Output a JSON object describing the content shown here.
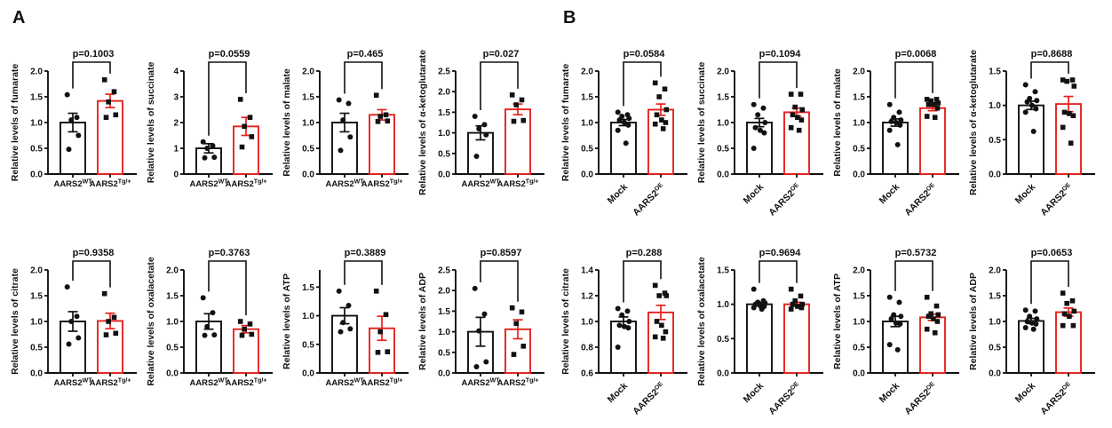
{
  "colors": {
    "bar1": "#111111",
    "bar2": "#e8211d",
    "axis": "#111111",
    "marker": "#111111"
  },
  "panels": [
    {
      "id": "A",
      "label": "A"
    },
    {
      "id": "B",
      "label": "B"
    }
  ],
  "chart_data": [
    {
      "panel": "A",
      "type": "bar",
      "ylabel": "Relative levels of fumarate",
      "p_label": "p=0.1003",
      "ylim": [
        0,
        2.0
      ],
      "yticks": [
        "0.0",
        "0.5",
        "1.0",
        "1.5",
        "2.0"
      ],
      "xlabel_rotated": false,
      "categories": [
        {
          "text": "AARS2",
          "sup": "WT"
        },
        {
          "text": "AARS2",
          "sup": "Tg/+"
        }
      ],
      "series": [
        {
          "name": "AARS2 WT",
          "mean": 1.0,
          "sem": 0.18,
          "marker": "circle",
          "color_key": "bar1",
          "points": [
            1.54,
            1.1,
            1.05,
            0.75,
            0.48
          ]
        },
        {
          "name": "AARS2 Tg/+",
          "mean": 1.42,
          "sem": 0.13,
          "marker": "square",
          "color_key": "bar2",
          "points": [
            1.83,
            1.6,
            1.4,
            1.15,
            1.1
          ]
        }
      ]
    },
    {
      "panel": "A",
      "type": "bar",
      "ylabel": "Relative levels of succinate",
      "p_label": "p=0.0559",
      "ylim": [
        0,
        4.0
      ],
      "yticks": [
        "0",
        "1",
        "2",
        "3",
        "4"
      ],
      "xlabel_rotated": false,
      "categories": [
        {
          "text": "AARS2",
          "sup": "WT"
        },
        {
          "text": "AARS2",
          "sup": "Tg/+"
        }
      ],
      "series": [
        {
          "name": "AARS2 WT",
          "mean": 1.0,
          "sem": 0.18,
          "marker": "circle",
          "color_key": "bar1",
          "points": [
            1.25,
            1.1,
            1.0,
            0.65,
            0.63
          ]
        },
        {
          "name": "AARS2 Tg/+",
          "mean": 1.85,
          "sem": 0.35,
          "marker": "square",
          "color_key": "bar2",
          "points": [
            2.9,
            2.2,
            1.85,
            1.45,
            1.05
          ]
        }
      ]
    },
    {
      "panel": "A",
      "type": "bar",
      "ylabel": "Relative levels of malate",
      "p_label": "p=0.465",
      "ylim": [
        0,
        2.0
      ],
      "yticks": [
        "0.0",
        "0.5",
        "1.0",
        "1.5",
        "2.0"
      ],
      "xlabel_rotated": false,
      "categories": [
        {
          "text": "AARS2",
          "sup": "WT"
        },
        {
          "text": "AARS2",
          "sup": "Tg/+"
        }
      ],
      "series": [
        {
          "name": "AARS2 WT",
          "mean": 1.0,
          "sem": 0.18,
          "marker": "circle",
          "color_key": "bar1",
          "points": [
            1.44,
            1.37,
            1.05,
            0.72,
            0.46
          ]
        },
        {
          "name": "AARS2 Tg/+",
          "mean": 1.15,
          "sem": 0.1,
          "marker": "square",
          "color_key": "bar2",
          "points": [
            1.53,
            1.15,
            1.12,
            1.03,
            1.02
          ]
        }
      ]
    },
    {
      "panel": "A",
      "type": "bar",
      "ylabel": "Relative levels of α-ketoglutarate",
      "p_label": "p=0.027",
      "ylim": [
        0,
        2.5
      ],
      "yticks": [
        "0.0",
        "0.5",
        "1.0",
        "1.5",
        "2.0",
        "2.5"
      ],
      "xlabel_rotated": false,
      "categories": [
        {
          "text": "AARS2",
          "sup": "WT"
        },
        {
          "text": "AARS2",
          "sup": "Tg/+"
        }
      ],
      "series": [
        {
          "name": "AARS2 WT",
          "mean": 1.0,
          "sem": 0.17,
          "marker": "circle",
          "color_key": "bar1",
          "points": [
            1.4,
            1.2,
            1.1,
            0.95,
            0.43
          ]
        },
        {
          "name": "AARS2 Tg/+",
          "mean": 1.57,
          "sem": 0.13,
          "marker": "square",
          "color_key": "bar2",
          "points": [
            1.92,
            1.8,
            1.68,
            1.3,
            1.28
          ]
        }
      ]
    },
    {
      "panel": "A",
      "type": "bar",
      "ylabel": "Relative levels of citrate",
      "p_label": "p=0.9358",
      "ylim": [
        0,
        2.0
      ],
      "yticks": [
        "0.0",
        "0.5",
        "1.0",
        "1.5",
        "2.0"
      ],
      "xlabel_rotated": false,
      "categories": [
        {
          "text": "AARS2",
          "sup": "WT"
        },
        {
          "text": "AARS2",
          "sup": "Tg/+"
        }
      ],
      "series": [
        {
          "name": "AARS2 WT",
          "mean": 1.0,
          "sem": 0.19,
          "marker": "circle",
          "color_key": "bar1",
          "points": [
            1.67,
            1.1,
            1.0,
            0.68,
            0.56
          ]
        },
        {
          "name": "AARS2 Tg/+",
          "mean": 1.01,
          "sem": 0.15,
          "marker": "square",
          "color_key": "bar2",
          "points": [
            1.54,
            1.08,
            1.0,
            0.77,
            0.74
          ]
        }
      ]
    },
    {
      "panel": "A",
      "type": "bar",
      "ylabel": "Relative levels of oxalacetate",
      "p_label": "p=0.3763",
      "ylim": [
        0,
        2.0
      ],
      "yticks": [
        "0.0",
        "0.5",
        "1.0",
        "1.5",
        "2.0"
      ],
      "xlabel_rotated": false,
      "categories": [
        {
          "text": "AARS2",
          "sup": "WT"
        },
        {
          "text": "AARS2",
          "sup": "Tg/+"
        }
      ],
      "series": [
        {
          "name": "AARS2 WT",
          "mean": 1.0,
          "sem": 0.15,
          "marker": "circle",
          "color_key": "bar1",
          "points": [
            1.46,
            1.17,
            0.9,
            0.74,
            0.73
          ]
        },
        {
          "name": "AARS2 Tg/+",
          "mean": 0.85,
          "sem": 0.07,
          "marker": "square",
          "color_key": "bar2",
          "points": [
            1.0,
            0.95,
            0.85,
            0.75,
            0.73
          ]
        }
      ]
    },
    {
      "panel": "A",
      "type": "bar",
      "ylabel": "Relative levels of ATP",
      "p_label": "p=0.3889",
      "ylim": [
        0,
        1.8
      ],
      "yticks": [
        "0.0",
        "0.5",
        "1.0",
        "1.5"
      ],
      "xlabel_rotated": false,
      "categories": [
        {
          "text": "AARS2",
          "sup": "WT"
        },
        {
          "text": "AARS2",
          "sup": "Tg/+"
        }
      ],
      "series": [
        {
          "name": "AARS2 WT",
          "mean": 1.0,
          "sem": 0.14,
          "marker": "circle",
          "color_key": "bar1",
          "points": [
            1.43,
            1.18,
            0.88,
            0.77,
            0.72
          ]
        },
        {
          "name": "AARS2 Tg/+",
          "mean": 0.78,
          "sem": 0.21,
          "marker": "square",
          "color_key": "bar2",
          "points": [
            1.43,
            1.02,
            0.72,
            0.37,
            0.36
          ]
        }
      ]
    },
    {
      "panel": "A",
      "type": "bar",
      "ylabel": "Relative levels of ADP",
      "p_label": "p=0.8597",
      "ylim": [
        0,
        2.5
      ],
      "yticks": [
        "0.0",
        "0.5",
        "1.0",
        "1.5",
        "2.0",
        "2.5"
      ],
      "xlabel_rotated": false,
      "categories": [
        {
          "text": "AARS2",
          "sup": "WT"
        },
        {
          "text": "AARS2",
          "sup": "Tg/+"
        }
      ],
      "series": [
        {
          "name": "AARS2 WT",
          "mean": 1.0,
          "sem": 0.35,
          "marker": "circle",
          "color_key": "bar1",
          "points": [
            2.05,
            1.43,
            1.02,
            0.27,
            0.15
          ]
        },
        {
          "name": "AARS2 Tg/+",
          "mean": 1.06,
          "sem": 0.23,
          "marker": "square",
          "color_key": "bar2",
          "points": [
            1.58,
            1.48,
            1.2,
            0.65,
            0.45
          ]
        }
      ]
    },
    {
      "panel": "B",
      "type": "bar",
      "ylabel": "Relative levels of fumarate",
      "p_label": "p=0.0584",
      "ylim": [
        0,
        2.0
      ],
      "yticks": [
        "0.0",
        "0.5",
        "1.0",
        "1.5",
        "2.0"
      ],
      "xlabel_rotated": true,
      "categories": [
        {
          "text": "Mock",
          "sup": ""
        },
        {
          "text": "AARS2",
          "sup": "OE"
        }
      ],
      "series": [
        {
          "name": "Mock",
          "mean": 1.0,
          "sem": 0.06,
          "marker": "circle",
          "color_key": "bar1",
          "points": [
            1.2,
            1.15,
            1.12,
            1.08,
            1.05,
            1.0,
            0.95,
            0.85,
            0.6
          ]
        },
        {
          "name": "AARS2 OE",
          "mean": 1.25,
          "sem": 0.11,
          "marker": "square",
          "color_key": "bar2",
          "points": [
            1.77,
            1.65,
            1.5,
            1.25,
            1.15,
            1.05,
            1.0,
            0.97,
            0.88
          ]
        }
      ]
    },
    {
      "panel": "B",
      "type": "bar",
      "ylabel": "Relative levels of succinate",
      "p_label": "p=0.1094",
      "ylim": [
        0,
        2.0
      ],
      "yticks": [
        "0.0",
        "0.5",
        "1.0",
        "1.5",
        "2.0"
      ],
      "xlabel_rotated": true,
      "categories": [
        {
          "text": "Mock",
          "sup": ""
        },
        {
          "text": "AARS2",
          "sup": "OE"
        }
      ],
      "series": [
        {
          "name": "Mock",
          "mean": 1.0,
          "sem": 0.08,
          "marker": "circle",
          "color_key": "bar1",
          "points": [
            1.35,
            1.28,
            1.15,
            1.0,
            0.9,
            0.85,
            0.8,
            0.5
          ]
        },
        {
          "name": "AARS2 OE",
          "mean": 1.2,
          "sem": 0.08,
          "marker": "square",
          "color_key": "bar2",
          "points": [
            1.55,
            1.55,
            1.3,
            1.25,
            1.15,
            1.1,
            1.05,
            0.9,
            0.85
          ]
        }
      ]
    },
    {
      "panel": "B",
      "type": "bar",
      "ylabel": "Relative levels of malate",
      "p_label": "p=0.0068",
      "ylim": [
        0,
        2.0
      ],
      "yticks": [
        "0.0",
        "0.5",
        "1.0",
        "1.5",
        "2.0"
      ],
      "xlabel_rotated": true,
      "categories": [
        {
          "text": "Mock",
          "sup": ""
        },
        {
          "text": "AARS2",
          "sup": "OE"
        }
      ],
      "series": [
        {
          "name": "Mock",
          "mean": 1.0,
          "sem": 0.07,
          "marker": "circle",
          "color_key": "bar1",
          "points": [
            1.35,
            1.2,
            1.1,
            1.05,
            1.02,
            1.0,
            0.95,
            0.85,
            0.57
          ]
        },
        {
          "name": "AARS2 OE",
          "mean": 1.28,
          "sem": 0.05,
          "marker": "square",
          "color_key": "bar2",
          "points": [
            1.45,
            1.45,
            1.42,
            1.38,
            1.35,
            1.35,
            1.28,
            1.12,
            1.1
          ]
        }
      ]
    },
    {
      "panel": "B",
      "type": "bar",
      "ylabel": "Relative levels of α-ketoglutarate",
      "p_label": "p=0.8688",
      "ylim": [
        0,
        1.5
      ],
      "yticks": [
        "0.0",
        "0.5",
        "1.0",
        "1.5"
      ],
      "xlabel_rotated": true,
      "categories": [
        {
          "text": "Mock",
          "sup": ""
        },
        {
          "text": "AARS2",
          "sup": "OE"
        }
      ],
      "series": [
        {
          "name": "Mock",
          "mean": 1.0,
          "sem": 0.06,
          "marker": "circle",
          "color_key": "bar1",
          "points": [
            1.3,
            1.2,
            1.1,
            1.07,
            1.05,
            1.0,
            0.95,
            0.9,
            0.62
          ]
        },
        {
          "name": "AARS2 OE",
          "mean": 1.02,
          "sem": 0.11,
          "marker": "square",
          "color_key": "bar2",
          "points": [
            1.37,
            1.37,
            1.35,
            1.28,
            0.9,
            0.88,
            0.85,
            0.68,
            0.45
          ]
        }
      ]
    },
    {
      "panel": "B",
      "type": "bar",
      "ylabel": "Relative levels of citrate",
      "p_label": "p=0.288",
      "ylim": [
        0.6,
        1.4
      ],
      "yticks": [
        "0.6",
        "0.8",
        "1.0",
        "1.2",
        "1.4"
      ],
      "xlabel_rotated": true,
      "categories": [
        {
          "text": "Mock",
          "sup": ""
        },
        {
          "text": "AARS2",
          "sup": "OE"
        }
      ],
      "series": [
        {
          "name": "Mock",
          "mean": 1.0,
          "sem": 0.035,
          "marker": "circle",
          "color_key": "bar1",
          "points": [
            1.1,
            1.08,
            1.05,
            1.0,
            0.97,
            0.96,
            0.95,
            0.8
          ]
        },
        {
          "name": "AARS2 OE",
          "mean": 1.07,
          "sem": 0.055,
          "marker": "square",
          "color_key": "bar2",
          "points": [
            1.28,
            1.22,
            1.2,
            1.2,
            1.0,
            0.97,
            0.92,
            0.88,
            0.87
          ]
        }
      ]
    },
    {
      "panel": "B",
      "type": "bar",
      "ylabel": "Relative levels of oxalacetate",
      "p_label": "p=0.9694",
      "ylim": [
        0,
        1.5
      ],
      "yticks": [
        "0.0",
        "0.5",
        "1.0",
        "1.5"
      ],
      "xlabel_rotated": true,
      "categories": [
        {
          "text": "Mock",
          "sup": ""
        },
        {
          "text": "AARS2",
          "sup": "OE"
        }
      ],
      "series": [
        {
          "name": "Mock",
          "mean": 1.0,
          "sem": 0.025,
          "marker": "circle",
          "color_key": "bar1",
          "points": [
            1.22,
            1.05,
            1.03,
            1.02,
            1.0,
            0.98,
            0.97,
            0.95,
            0.93
          ]
        },
        {
          "name": "AARS2 OE",
          "mean": 1.0,
          "sem": 0.03,
          "marker": "square",
          "color_key": "bar2",
          "points": [
            1.22,
            1.12,
            1.05,
            1.0,
            1.0,
            0.97,
            0.95,
            0.93
          ]
        }
      ]
    },
    {
      "panel": "B",
      "type": "bar",
      "ylabel": "Relative levels of ATP",
      "p_label": "p=0.5732",
      "ylim": [
        0,
        2.0
      ],
      "yticks": [
        "0.0",
        "0.5",
        "1.0",
        "1.5",
        "2.0"
      ],
      "xlabel_rotated": true,
      "categories": [
        {
          "text": "Mock",
          "sup": ""
        },
        {
          "text": "AARS2",
          "sup": "OE"
        }
      ],
      "series": [
        {
          "name": "Mock",
          "mean": 1.0,
          "sem": 0.1,
          "marker": "circle",
          "color_key": "bar1",
          "points": [
            1.47,
            1.37,
            1.13,
            1.1,
            1.05,
            0.97,
            0.95,
            0.55,
            0.45
          ]
        },
        {
          "name": "AARS2 OE",
          "mean": 1.08,
          "sem": 0.06,
          "marker": "square",
          "color_key": "bar2",
          "points": [
            1.47,
            1.3,
            1.15,
            1.13,
            1.1,
            1.05,
            1.0,
            0.85,
            0.78
          ]
        }
      ]
    },
    {
      "panel": "B",
      "type": "bar",
      "ylabel": "Relative levels of ADP",
      "p_label": "p=0.0653",
      "ylim": [
        0,
        2.0
      ],
      "yticks": [
        "0.0",
        "0.5",
        "1.0",
        "1.5",
        "2.0"
      ],
      "xlabel_rotated": true,
      "categories": [
        {
          "text": "Mock",
          "sup": ""
        },
        {
          "text": "AARS2",
          "sup": "OE"
        }
      ],
      "series": [
        {
          "name": "Mock",
          "mean": 1.01,
          "sem": 0.05,
          "marker": "circle",
          "color_key": "bar1",
          "points": [
            1.22,
            1.2,
            1.1,
            1.05,
            1.0,
            0.97,
            0.95,
            0.88,
            0.85
          ]
        },
        {
          "name": "AARS2 OE",
          "mean": 1.18,
          "sem": 0.08,
          "marker": "square",
          "color_key": "bar2",
          "points": [
            1.55,
            1.4,
            1.35,
            1.2,
            1.15,
            1.1,
            0.92,
            0.92
          ]
        }
      ]
    }
  ]
}
